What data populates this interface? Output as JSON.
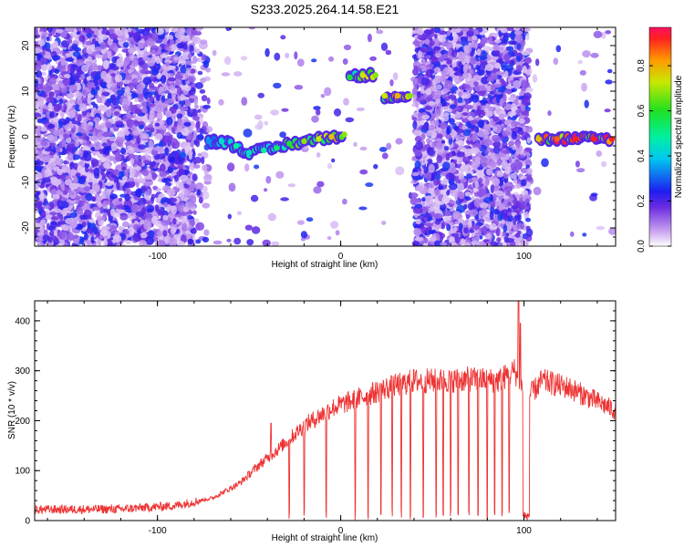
{
  "title": "S233.2025.264.14.58.E21",
  "chart_data": [
    {
      "type": "heatmap",
      "xlabel": "Height of straight line (km)",
      "ylabel": "Frequency (Hz)",
      "xlim": [
        -167,
        150
      ],
      "ylim": [
        -24,
        24
      ],
      "xticks": [
        -100,
        0,
        100
      ],
      "yticks": [
        -20,
        -10,
        0,
        10,
        20
      ],
      "colorbar": {
        "label": "Normalized spectral amplitude",
        "range": [
          0,
          0.97
        ],
        "ticks": [
          0.0,
          0.2,
          0.4,
          0.6,
          0.8
        ]
      },
      "noise_regions": [
        {
          "x": [
            -167,
            -80
          ],
          "density": 1.0
        },
        {
          "x": [
            -80,
            -72
          ],
          "density": 0.3
        },
        {
          "x": [
            -70,
            3
          ],
          "density": 0.03
        },
        {
          "x": [
            3,
            40
          ],
          "density": 0.02
        },
        {
          "x": [
            40,
            103
          ],
          "density": 1.0
        },
        {
          "x": [
            103,
            150
          ],
          "density": 0.02
        }
      ],
      "signal_track": [
        {
          "x": -92,
          "y": -5,
          "amp": 0.25
        },
        {
          "x": -86,
          "y": -4,
          "amp": 0.3
        },
        {
          "x": -82,
          "y": -23,
          "amp": 0.22
        },
        {
          "x": -72,
          "y": -1,
          "amp": 0.35
        },
        {
          "x": -65,
          "y": -1,
          "amp": 0.45
        },
        {
          "x": -57,
          "y": -2,
          "amp": 0.5
        },
        {
          "x": -50,
          "y": -3.5,
          "amp": 0.45
        },
        {
          "x": -42,
          "y": -3,
          "amp": 0.5
        },
        {
          "x": -35,
          "y": -2.5,
          "amp": 0.55
        },
        {
          "x": -28,
          "y": -1.5,
          "amp": 0.6
        },
        {
          "x": -20,
          "y": -1,
          "amp": 0.7
        },
        {
          "x": -12,
          "y": -0.5,
          "amp": 0.75
        },
        {
          "x": -5,
          "y": 0,
          "amp": 0.8
        },
        {
          "x": 2,
          "y": 0.5,
          "amp": 0.7
        },
        {
          "x": 5,
          "y": 13,
          "amp": 0.6
        },
        {
          "x": 12,
          "y": 13.5,
          "amp": 0.75
        },
        {
          "x": 19,
          "y": 13.5,
          "amp": 0.7
        },
        {
          "x": 24,
          "y": 9,
          "amp": 0.75
        },
        {
          "x": 31,
          "y": 9,
          "amp": 0.82
        },
        {
          "x": 38,
          "y": 9,
          "amp": 0.7
        },
        {
          "x": 108,
          "y": -0.5,
          "amp": 0.8
        },
        {
          "x": 118,
          "y": -0.5,
          "amp": 0.9
        },
        {
          "x": 128,
          "y": -0.5,
          "amp": 0.95
        },
        {
          "x": 138,
          "y": -0.5,
          "amp": 0.95
        },
        {
          "x": 148,
          "y": -0.5,
          "amp": 0.95
        }
      ]
    },
    {
      "type": "line",
      "xlabel": "Height of straight line (km)",
      "ylabel": "SNR (10 * v/v)",
      "xlim": [
        -167,
        150
      ],
      "ylim": [
        0,
        440
      ],
      "xticks": [
        -100,
        0,
        100
      ],
      "yticks": [
        0,
        100,
        200,
        300,
        400
      ],
      "color": "#ee3333",
      "envelope": [
        {
          "x": -167,
          "y": 22
        },
        {
          "x": -120,
          "y": 23
        },
        {
          "x": -90,
          "y": 30
        },
        {
          "x": -70,
          "y": 45
        },
        {
          "x": -55,
          "y": 75
        },
        {
          "x": -45,
          "y": 110
        },
        {
          "x": -35,
          "y": 140
        },
        {
          "x": -20,
          "y": 190
        },
        {
          "x": -5,
          "y": 225
        },
        {
          "x": 10,
          "y": 245
        },
        {
          "x": 25,
          "y": 265
        },
        {
          "x": 40,
          "y": 280
        },
        {
          "x": 55,
          "y": 280
        },
        {
          "x": 70,
          "y": 283
        },
        {
          "x": 86,
          "y": 280
        },
        {
          "x": 95,
          "y": 300
        },
        {
          "x": 100,
          "y": 260
        },
        {
          "x": 103,
          "y": 250
        },
        {
          "x": 110,
          "y": 280
        },
        {
          "x": 125,
          "y": 265
        },
        {
          "x": 150,
          "y": 220
        }
      ],
      "dropouts": [
        -28,
        -20,
        -8,
        8,
        15,
        22,
        28,
        33,
        38,
        45,
        52,
        56,
        60,
        64,
        70,
        75,
        80,
        84,
        88,
        92
      ],
      "spikes": [
        {
          "x": -38,
          "y": 195
        },
        {
          "x": 97,
          "y": 440
        },
        {
          "x": 98,
          "y": 395
        }
      ]
    }
  ]
}
